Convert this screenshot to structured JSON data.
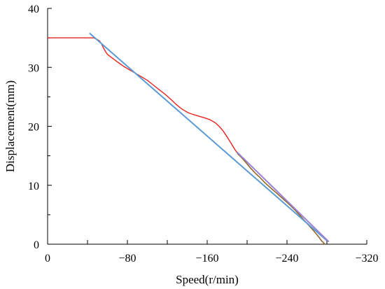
{
  "chart_data": {
    "type": "line",
    "title": "",
    "xlabel": "Speed(r/min)",
    "ylabel": "Displacement(mm)",
    "xlim": [
      0,
      -320
    ],
    "ylim": [
      0,
      40
    ],
    "x_ticks": [
      0,
      -80,
      -160,
      -240,
      -320
    ],
    "x_tick_labels": [
      "0",
      "−80",
      "−160",
      "−240",
      "−320"
    ],
    "y_ticks": [
      0,
      10,
      20,
      30,
      40
    ],
    "y_tick_labels": [
      "0",
      "10",
      "20",
      "30",
      "40"
    ],
    "grid": false,
    "legend": "none",
    "series": [
      {
        "color": "#e8231e",
        "style": "measured",
        "x": [
          0,
          -30,
          -46,
          -49,
          -52,
          -54,
          -56,
          -58,
          -60,
          -63,
          -67,
          -71,
          -76,
          -82,
          -88,
          -94,
          -100,
          -106,
          -112,
          -118,
          -124,
          -129,
          -134,
          -137,
          -141,
          -146,
          -152,
          -158,
          -163,
          -168,
          -172,
          -176,
          -180,
          -184,
          -188,
          -191,
          -195,
          -199,
          -203,
          -208,
          -213,
          -218,
          -224,
          -230,
          -236,
          -242,
          -248,
          -254,
          -259,
          -264,
          -268,
          -272,
          -275,
          -278
        ],
        "y": [
          35.0,
          35.0,
          35.0,
          34.8,
          34.5,
          34.0,
          33.3,
          32.7,
          32.2,
          31.8,
          31.3,
          30.8,
          30.2,
          29.6,
          29.0,
          28.4,
          27.8,
          27.0,
          26.2,
          25.4,
          24.5,
          23.7,
          23.0,
          22.7,
          22.3,
          22.0,
          21.7,
          21.4,
          21.1,
          20.6,
          20.0,
          19.2,
          18.2,
          17.1,
          16.0,
          15.3,
          14.6,
          13.8,
          13.0,
          12.1,
          11.3,
          10.4,
          9.5,
          8.6,
          7.7,
          6.8,
          5.8,
          4.7,
          3.7,
          2.8,
          2.0,
          1.2,
          0.5,
          0.0
        ]
      },
      {
        "color": "#8a6a1e",
        "style": "overlay",
        "x": [
          -190,
          -195,
          -199,
          -203,
          -208,
          -213,
          -218,
          -224,
          -230,
          -236,
          -242,
          -248,
          -254,
          -259,
          -264,
          -268,
          -272,
          -275,
          -278
        ],
        "y": [
          15.4,
          14.6,
          13.8,
          13.0,
          12.1,
          11.3,
          10.4,
          9.5,
          8.6,
          7.7,
          6.8,
          5.8,
          4.7,
          3.7,
          2.8,
          2.0,
          1.2,
          0.5,
          0.0
        ]
      },
      {
        "color": "#5a9bd5",
        "style": "fit",
        "x": [
          -42,
          -280
        ],
        "y": [
          35.8,
          0.6
        ]
      },
      {
        "color": "#9b82d2",
        "style": "fit",
        "x": [
          -190,
          -282
        ],
        "y": [
          15.6,
          0.4
        ]
      }
    ]
  }
}
